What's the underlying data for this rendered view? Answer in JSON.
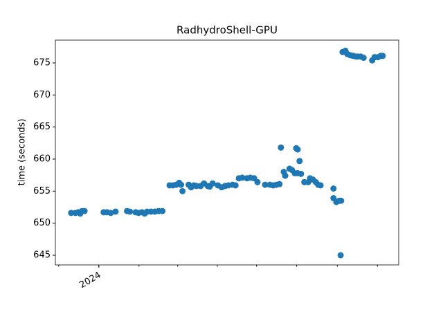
{
  "chart_data": {
    "type": "scatter",
    "title": "RadhydroShell-GPU",
    "y_label": "time (seconds)",
    "color": "#1f77b4",
    "x": [
      2023.942,
      2023.951,
      2023.957,
      2023.961,
      2023.965,
      2023.97,
      2024.01,
      2024.017,
      2024.025,
      2024.035,
      2024.059,
      2024.065,
      2024.077,
      2024.083,
      2024.09,
      2024.096,
      2024.101,
      2024.109,
      2024.117,
      2024.125,
      2024.133,
      2024.148,
      2024.155,
      2024.162,
      2024.168,
      2024.172,
      2024.175,
      2024.188,
      2024.193,
      2024.199,
      2024.204,
      2024.213,
      2024.22,
      2024.228,
      2024.232,
      2024.238,
      2024.249,
      2024.257,
      2024.264,
      2024.271,
      2024.28,
      2024.286,
      2024.293,
      2024.3,
      2024.31,
      2024.317,
      2024.325,
      2024.332,
      2024.348,
      2024.358,
      2024.365,
      2024.372,
      2024.378,
      2024.381,
      2024.387,
      2024.39,
      2024.399,
      2024.404,
      2024.41,
      2024.413,
      2024.416,
      2024.42,
      2024.416,
      2024.423,
      2024.43,
      2024.438,
      2024.442,
      2024.448,
      2024.454,
      2024.459,
      2024.464,
      2024.491,
      2024.491,
      2024.497,
      2024.503,
      2024.506,
      2024.507,
      2024.51,
      2024.516,
      2024.52,
      2024.526,
      2024.532,
      2024.538,
      2024.542,
      2024.548,
      2024.554,
      2024.572,
      2024.577,
      2024.584,
      2024.59,
      2024.594
    ],
    "values": [
      651.6,
      651.6,
      651.7,
      651.5,
      651.9,
      651.9,
      651.7,
      651.7,
      651.6,
      651.8,
      651.9,
      651.8,
      651.7,
      651.6,
      651.7,
      651.5,
      651.8,
      651.8,
      651.8,
      651.9,
      651.9,
      655.9,
      655.9,
      656.0,
      656.3,
      656.0,
      655.0,
      656.0,
      655.6,
      655.9,
      655.8,
      655.8,
      656.2,
      655.8,
      655.7,
      656.2,
      655.9,
      655.6,
      655.8,
      655.9,
      656.0,
      655.9,
      657.0,
      657.1,
      657.0,
      657.1,
      657.0,
      656.4,
      656.0,
      656.0,
      655.9,
      656.0,
      656.1,
      661.8,
      658.0,
      657.4,
      658.5,
      658.3,
      657.8,
      661.7,
      661.5,
      659.7,
      657.8,
      657.7,
      656.4,
      656.4,
      657.0,
      656.8,
      656.4,
      656.0,
      655.9,
      653.9,
      655.4,
      653.3,
      653.5,
      645.0,
      653.5,
      676.7,
      676.9,
      676.4,
      676.2,
      676.1,
      676.0,
      676.0,
      676.0,
      675.8,
      675.4,
      675.9,
      675.9,
      676.1,
      676.1
    ],
    "xlim": [
      2023.909,
      2024.6275
    ],
    "xticks": [
      2024
    ],
    "xminorticks": [
      2023.916,
      2024,
      2024.084,
      2024.165,
      2024.248,
      2024.33,
      2024.414,
      2024.499,
      2024.583
    ],
    "ylim": [
      643.49,
      678.56
    ],
    "yticks": [
      645,
      650,
      655,
      660,
      665,
      670,
      675
    ]
  }
}
